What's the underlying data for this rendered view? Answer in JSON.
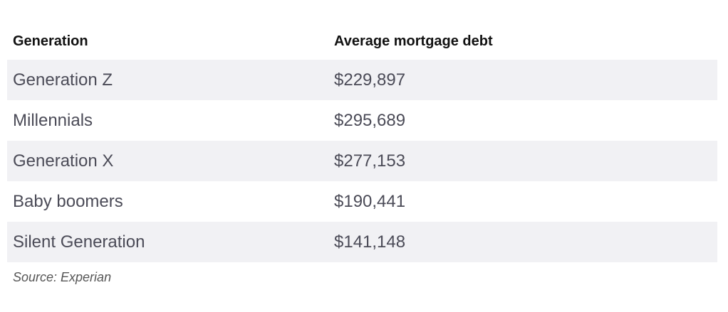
{
  "table": {
    "header": [
      "Generation",
      "Average mortgage debt"
    ],
    "rows": [
      [
        "Generation Z",
        "$229,897"
      ],
      [
        "Millennials",
        "$295,689"
      ],
      [
        "Generation X",
        "$277,153"
      ],
      [
        "Baby boomers",
        "$190,441"
      ],
      [
        "Silent Generation",
        "$141,148"
      ]
    ]
  },
  "source": "Source: Experian"
}
